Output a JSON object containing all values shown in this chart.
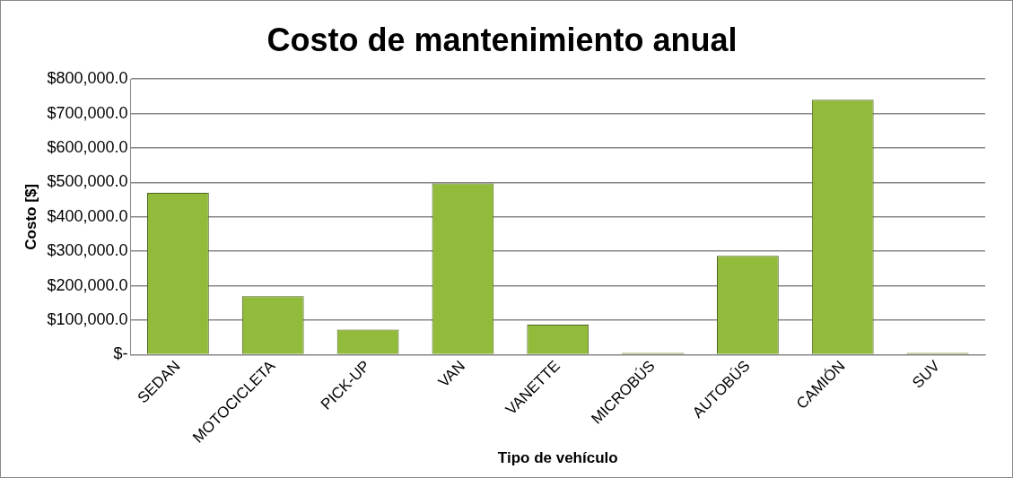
{
  "chart_data": {
    "type": "bar",
    "title": "Costo de mantenimiento anual",
    "xlabel": "Tipo de vehículo",
    "ylabel": "Costo [$]",
    "categories": [
      "SEDAN",
      "MOTOCICLETA",
      "PICK-UP",
      "VAN",
      "VANETTE",
      "MICROBÚS",
      "AUTOBÚS",
      "CAMIÓN",
      "SUV"
    ],
    "values": [
      470000,
      170000,
      73000,
      497000,
      87000,
      5000,
      287000,
      740000,
      5000
    ],
    "color": "#92bb3c",
    "ylim": [
      0,
      800000
    ],
    "yticks": [
      {
        "value": 0,
        "label": "$-"
      },
      {
        "value": 100000,
        "label": "$100,000.0"
      },
      {
        "value": 200000,
        "label": "$200,000.0"
      },
      {
        "value": 300000,
        "label": "$300,000.0"
      },
      {
        "value": 400000,
        "label": "$400,000.0"
      },
      {
        "value": 500000,
        "label": "$500,000.0"
      },
      {
        "value": 600000,
        "label": "$600,000.0"
      },
      {
        "value": 700000,
        "label": "$700,000.0"
      },
      {
        "value": 800000,
        "label": "$800,000.0"
      }
    ],
    "grid": "y",
    "legend": false
  }
}
